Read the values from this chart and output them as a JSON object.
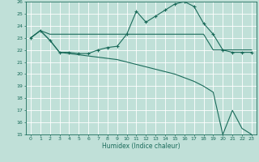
{
  "xlabel": "Humidex (Indice chaleur)",
  "bg_color": "#c0e0d8",
  "grid_color": "#ffffff",
  "line_color": "#1a6b5a",
  "xlim": [
    -0.5,
    23.5
  ],
  "ylim": [
    15,
    26
  ],
  "yticks": [
    15,
    16,
    17,
    18,
    19,
    20,
    21,
    22,
    23,
    24,
    25,
    26
  ],
  "xticks": [
    0,
    1,
    2,
    3,
    4,
    5,
    6,
    7,
    8,
    9,
    10,
    11,
    12,
    13,
    14,
    15,
    16,
    17,
    18,
    19,
    20,
    21,
    22,
    23
  ],
  "series": [
    {
      "x": [
        0,
        1,
        2,
        3,
        4,
        5,
        6,
        7,
        8,
        9,
        10,
        11,
        12,
        13,
        14,
        15,
        16,
        17,
        18,
        19,
        20,
        21,
        22,
        23
      ],
      "y": [
        23,
        23.6,
        23.3,
        23.3,
        23.3,
        23.3,
        23.3,
        23.3,
        23.3,
        23.3,
        23.3,
        23.3,
        23.3,
        23.3,
        23.3,
        23.3,
        23.3,
        23.3,
        23.3,
        22,
        22,
        22,
        22,
        22
      ],
      "marker": null
    },
    {
      "x": [
        0,
        1,
        2,
        3,
        4,
        5,
        6,
        7,
        8,
        9,
        10,
        11,
        12,
        13,
        14,
        15,
        16,
        17,
        18,
        19,
        20,
        21,
        22,
        23
      ],
      "y": [
        23,
        23.6,
        22.8,
        21.8,
        21.8,
        21.7,
        21.7,
        22,
        22.2,
        22.3,
        23.3,
        25.2,
        24.3,
        24.8,
        25.3,
        25.8,
        26,
        25.6,
        24.2,
        23.3,
        22,
        21.8,
        21.8,
        21.8
      ],
      "marker": "+"
    },
    {
      "x": [
        0,
        1,
        2,
        3,
        4,
        5,
        6,
        7,
        8,
        9,
        10,
        11,
        12,
        13,
        14,
        15,
        16,
        17,
        18,
        19,
        20,
        21,
        22,
        23
      ],
      "y": [
        23,
        23.6,
        22.8,
        21.8,
        21.7,
        21.6,
        21.5,
        21.4,
        21.3,
        21.2,
        21.0,
        20.8,
        20.6,
        20.4,
        20.2,
        20.0,
        19.7,
        19.4,
        19.0,
        18.5,
        15.0,
        17.0,
        15.5,
        15.0
      ],
      "marker": null
    }
  ]
}
